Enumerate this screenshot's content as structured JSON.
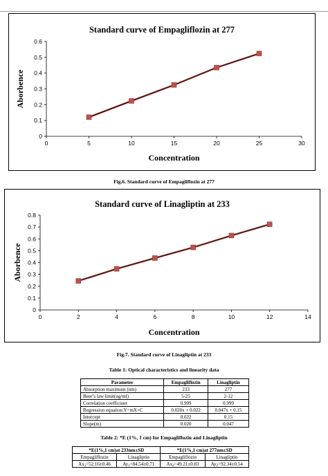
{
  "figures": [
    {
      "caption": "Fig.6. Standard curve of Empagliflozin at 277",
      "chart_data": {
        "type": "line",
        "title": "Standard curve of Empagliflozin at 277",
        "xlabel": "Concentration",
        "ylabel": "Aborbence",
        "xlim": [
          0,
          30
        ],
        "ylim": [
          0,
          0.6
        ],
        "xticks": [
          0,
          5,
          10,
          15,
          20,
          25,
          30
        ],
        "yticks": [
          0,
          0.1,
          0.2,
          0.3,
          0.4,
          0.5,
          0.6
        ],
        "grid": false,
        "legend": "none",
        "series": [
          {
            "x": [
              5,
              10,
              15,
              20,
              25
            ],
            "y": [
              0.121,
              0.224,
              0.325,
              0.435,
              0.524
            ],
            "color": "#c0504d",
            "line_color": "#000000",
            "marker": "square"
          }
        ]
      }
    },
    {
      "caption": "Fig.7. Standard curve of Linagliptin at 233",
      "chart_data": {
        "type": "line",
        "title": "Standard curve of Linagliptin at 233",
        "xlabel": "Concentration",
        "ylabel": "Aborbence",
        "xlim": [
          0,
          14
        ],
        "ylim": [
          0,
          0.8
        ],
        "xticks": [
          0,
          2,
          4,
          6,
          8,
          10,
          12,
          14
        ],
        "yticks": [
          0,
          0.1,
          0.2,
          0.3,
          0.4,
          0.5,
          0.6,
          0.7,
          0.8
        ],
        "grid": false,
        "legend": "none",
        "series": [
          {
            "x": [
              2,
              4,
              6,
              8,
              10,
              12
            ],
            "y": [
              0.245,
              0.347,
              0.438,
              0.528,
              0.628,
              0.723
            ],
            "color": "#c0504d",
            "line_color": "#000000",
            "marker": "square"
          }
        ]
      }
    }
  ],
  "table1": {
    "caption": "Table 1: Optical characteristics and linearity data",
    "headers": [
      "Parameter",
      "Empagliflozin",
      "Linagliptin"
    ],
    "rows": [
      [
        "Absorption maximum (nm)",
        "233",
        "277"
      ],
      [
        "Beer’s law limit(ug/ml)",
        "5-25",
        "2-12"
      ],
      [
        "Correlation coefficient",
        "0.999",
        "0.999"
      ],
      [
        "Regression equation Y=mX+C",
        "0.020x + 0.022",
        "0.047x + 0.15"
      ],
      [
        "Intercept",
        "0.022",
        "0.15"
      ],
      [
        "Slope(m)",
        "0.020",
        "0.047"
      ]
    ]
  },
  "table2": {
    "caption": "Table 2: *E (1%, 1 cm) for Empagliflozin and Linagliptin",
    "group_headers": [
      "*E(1%,1 cm)at 233nm±SD",
      "*E(1%,1 cm)at 277nm±SD"
    ],
    "sub_headers": [
      "Empagliflozin",
      "Linagliptin",
      "Empagliflozin",
      "Linagliptin"
    ],
    "values": [
      {
        "pre": "Ax",
        "sub": "1",
        "post": "=52.16±0.46"
      },
      {
        "pre": "Ay",
        "sub": "1",
        "post": "=84.54±0.71"
      },
      {
        "pre": "Ax",
        "sub": "2",
        "post": "=49.21±0.83"
      },
      {
        "pre": "Ay",
        "sub": "2",
        "post": "=92.34±0.54"
      }
    ]
  }
}
